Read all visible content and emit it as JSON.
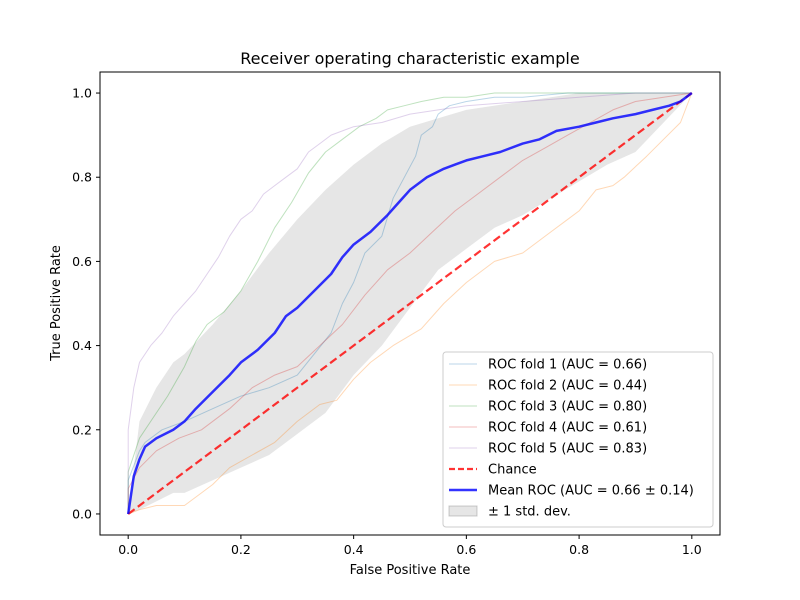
{
  "chart_data": {
    "type": "line",
    "title": "Receiver operating characteristic example",
    "xlabel": "False Positive Rate",
    "ylabel": "True Positive Rate",
    "xlim": [
      -0.05,
      1.05
    ],
    "ylim": [
      -0.05,
      1.05
    ],
    "xticks": [
      0.0,
      0.2,
      0.4,
      0.6,
      0.8,
      1.0
    ],
    "yticks": [
      0.0,
      0.2,
      0.4,
      0.6,
      0.8,
      1.0
    ],
    "xtick_labels": [
      "0.0",
      "0.2",
      "0.4",
      "0.6",
      "0.8",
      "1.0"
    ],
    "ytick_labels": [
      "0.0",
      "0.2",
      "0.4",
      "0.6",
      "0.8",
      "1.0"
    ],
    "grid": false,
    "legend_position": "lower-right",
    "series": [
      {
        "name": "ROC fold 1 (AUC = 0.66)",
        "color": "#1f77b4",
        "opacity": 0.3,
        "width": 1,
        "x": [
          0,
          0,
          0.02,
          0.03,
          0.06,
          0.1,
          0.15,
          0.2,
          0.25,
          0.3,
          0.33,
          0.36,
          0.38,
          0.4,
          0.42,
          0.45,
          0.47,
          0.49,
          0.51,
          0.52,
          0.54,
          0.55,
          0.57,
          0.6,
          0.65,
          0.7,
          0.78,
          0.85,
          1.0
        ],
        "y": [
          0,
          0.08,
          0.15,
          0.17,
          0.2,
          0.22,
          0.25,
          0.28,
          0.3,
          0.33,
          0.38,
          0.43,
          0.5,
          0.55,
          0.62,
          0.66,
          0.75,
          0.8,
          0.85,
          0.9,
          0.92,
          0.95,
          0.97,
          0.98,
          0.99,
          0.99,
          1.0,
          1.0,
          1.0
        ]
      },
      {
        "name": "ROC fold 2 (AUC = 0.44)",
        "color": "#ff7f0e",
        "opacity": 0.3,
        "width": 1,
        "x": [
          0,
          0.02,
          0.05,
          0.1,
          0.13,
          0.15,
          0.18,
          0.22,
          0.26,
          0.3,
          0.34,
          0.37,
          0.4,
          0.43,
          0.47,
          0.52,
          0.56,
          0.6,
          0.65,
          0.7,
          0.75,
          0.78,
          0.8,
          0.83,
          0.86,
          0.88,
          0.92,
          0.95,
          0.98,
          1.0
        ],
        "y": [
          0,
          0.01,
          0.02,
          0.02,
          0.05,
          0.07,
          0.11,
          0.14,
          0.17,
          0.22,
          0.26,
          0.27,
          0.32,
          0.36,
          0.4,
          0.44,
          0.5,
          0.55,
          0.6,
          0.62,
          0.67,
          0.7,
          0.72,
          0.77,
          0.78,
          0.8,
          0.85,
          0.89,
          0.93,
          1.0
        ]
      },
      {
        "name": "ROC fold 3 (AUC = 0.80)",
        "color": "#2ca02c",
        "opacity": 0.3,
        "width": 1,
        "x": [
          0,
          0,
          0.02,
          0.04,
          0.07,
          0.1,
          0.12,
          0.14,
          0.17,
          0.2,
          0.23,
          0.26,
          0.29,
          0.32,
          0.35,
          0.38,
          0.41,
          0.44,
          0.46,
          0.49,
          0.52,
          0.56,
          0.6,
          0.65,
          0.7,
          0.8,
          0.9,
          1.0
        ],
        "y": [
          0,
          0.1,
          0.18,
          0.22,
          0.28,
          0.35,
          0.41,
          0.45,
          0.48,
          0.53,
          0.6,
          0.68,
          0.74,
          0.81,
          0.86,
          0.89,
          0.92,
          0.94,
          0.96,
          0.97,
          0.98,
          0.99,
          0.99,
          1.0,
          1.0,
          1.0,
          1.0,
          1.0
        ]
      },
      {
        "name": "ROC fold 4 (AUC = 0.61)",
        "color": "#d62728",
        "opacity": 0.3,
        "width": 1,
        "x": [
          0,
          0,
          0.02,
          0.05,
          0.09,
          0.13,
          0.18,
          0.22,
          0.26,
          0.3,
          0.34,
          0.38,
          0.42,
          0.46,
          0.5,
          0.54,
          0.58,
          0.62,
          0.66,
          0.7,
          0.74,
          0.78,
          0.82,
          0.86,
          0.9,
          0.95,
          1.0
        ],
        "y": [
          0,
          0.06,
          0.11,
          0.15,
          0.18,
          0.2,
          0.25,
          0.3,
          0.33,
          0.35,
          0.4,
          0.45,
          0.52,
          0.58,
          0.62,
          0.67,
          0.72,
          0.76,
          0.8,
          0.84,
          0.87,
          0.9,
          0.93,
          0.96,
          0.98,
          0.99,
          1.0
        ]
      },
      {
        "name": "ROC fold 5 (AUC = 0.83)",
        "color": "#9467bd",
        "opacity": 0.3,
        "width": 1,
        "x": [
          0,
          0,
          0.01,
          0.02,
          0.04,
          0.06,
          0.08,
          0.1,
          0.12,
          0.14,
          0.16,
          0.18,
          0.2,
          0.22,
          0.24,
          0.26,
          0.28,
          0.3,
          0.32,
          0.34,
          0.36,
          0.38,
          0.4,
          0.45,
          0.5,
          0.55,
          0.6,
          0.7,
          0.8,
          0.9,
          1.0
        ],
        "y": [
          0,
          0.2,
          0.3,
          0.36,
          0.4,
          0.43,
          0.47,
          0.5,
          0.53,
          0.57,
          0.61,
          0.66,
          0.7,
          0.72,
          0.76,
          0.78,
          0.8,
          0.82,
          0.86,
          0.88,
          0.9,
          0.91,
          0.92,
          0.93,
          0.95,
          0.96,
          0.97,
          0.98,
          0.99,
          1.0,
          1.0
        ]
      },
      {
        "name": "Chance",
        "color": "#ff0000",
        "opacity": 0.8,
        "width": 2.2,
        "dashed": true,
        "x": [
          0,
          1
        ],
        "y": [
          0,
          1
        ]
      },
      {
        "name": "Mean ROC (AUC = 0.66 ± 0.14)",
        "color": "#0000ff",
        "opacity": 0.8,
        "width": 2.5,
        "x": [
          0,
          0.01,
          0.02,
          0.03,
          0.05,
          0.08,
          0.1,
          0.12,
          0.15,
          0.18,
          0.2,
          0.23,
          0.26,
          0.28,
          0.3,
          0.33,
          0.36,
          0.38,
          0.4,
          0.43,
          0.46,
          0.48,
          0.5,
          0.53,
          0.56,
          0.58,
          0.6,
          0.63,
          0.66,
          0.7,
          0.73,
          0.76,
          0.8,
          0.83,
          0.86,
          0.9,
          0.93,
          0.96,
          0.98,
          1.0
        ],
        "y": [
          0,
          0.09,
          0.13,
          0.16,
          0.18,
          0.2,
          0.22,
          0.25,
          0.29,
          0.33,
          0.36,
          0.39,
          0.43,
          0.47,
          0.49,
          0.53,
          0.57,
          0.61,
          0.64,
          0.67,
          0.71,
          0.74,
          0.77,
          0.8,
          0.82,
          0.83,
          0.84,
          0.85,
          0.86,
          0.88,
          0.89,
          0.91,
          0.92,
          0.93,
          0.94,
          0.95,
          0.96,
          0.97,
          0.98,
          1.0
        ]
      }
    ],
    "band": {
      "name": "± 1 std. dev.",
      "color": "#808080",
      "opacity": 0.2,
      "x": [
        0,
        0.02,
        0.05,
        0.08,
        0.1,
        0.15,
        0.2,
        0.25,
        0.3,
        0.35,
        0.4,
        0.45,
        0.5,
        0.55,
        0.6,
        0.65,
        0.7,
        0.75,
        0.8,
        0.85,
        0.9,
        0.95,
        1.0
      ],
      "upper": [
        0,
        0.22,
        0.3,
        0.36,
        0.38,
        0.45,
        0.53,
        0.62,
        0.7,
        0.77,
        0.83,
        0.88,
        0.92,
        0.94,
        0.96,
        0.97,
        0.98,
        0.99,
        1.0,
        1.0,
        1.0,
        1.0,
        1.0
      ],
      "lower": [
        0,
        0.01,
        0.03,
        0.05,
        0.05,
        0.08,
        0.11,
        0.14,
        0.19,
        0.24,
        0.33,
        0.4,
        0.49,
        0.58,
        0.63,
        0.68,
        0.71,
        0.75,
        0.79,
        0.83,
        0.86,
        0.93,
        1.0
      ]
    },
    "colors": {
      "band_fill": "#808080",
      "chance": "#ff0000",
      "mean": "#0000ff"
    }
  }
}
